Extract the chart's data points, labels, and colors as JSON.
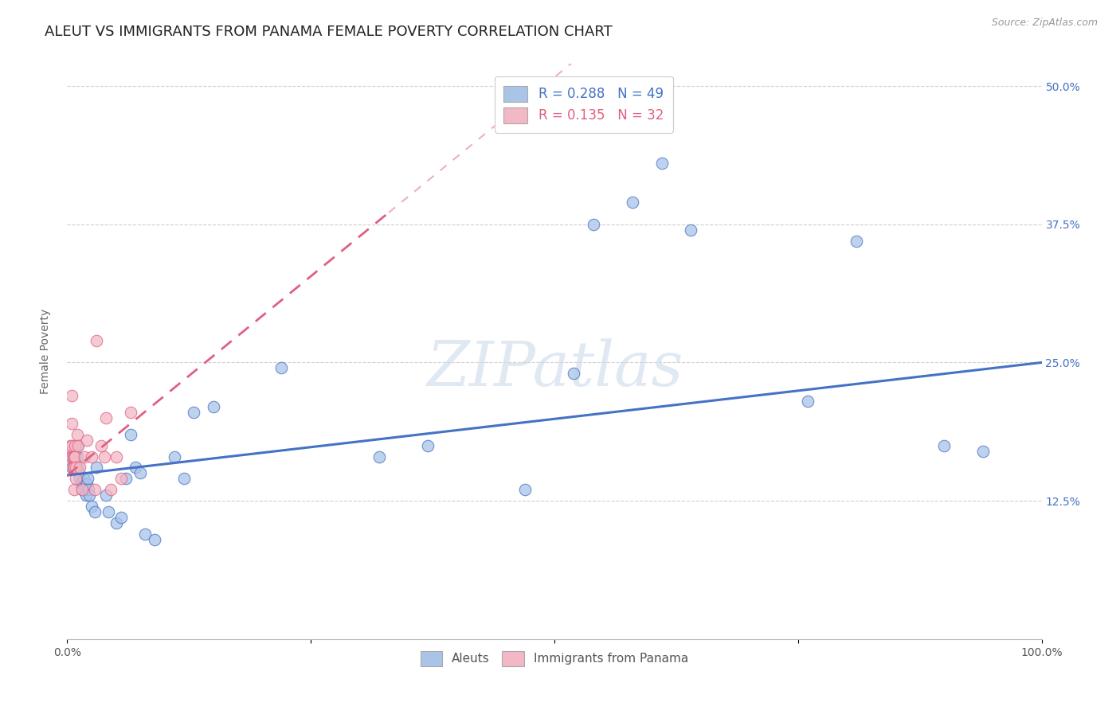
{
  "title": "ALEUT VS IMMIGRANTS FROM PANAMA FEMALE POVERTY CORRELATION CHART",
  "source": "Source: ZipAtlas.com",
  "ylabel": "Female Poverty",
  "xlim": [
    0,
    1.0
  ],
  "ylim": [
    0,
    0.52
  ],
  "ytick_labels": [
    "12.5%",
    "25.0%",
    "37.5%",
    "50.0%"
  ],
  "ytick_vals": [
    0.125,
    0.25,
    0.375,
    0.5
  ],
  "legend_r1": "R = 0.288",
  "legend_n1": "N = 49",
  "legend_r2": "R = 0.135",
  "legend_n2": "N = 32",
  "color_blue": "#aac4e8",
  "color_pink": "#f2b8c6",
  "line_blue": "#4472c4",
  "line_pink": "#e06080",
  "background_color": "#ffffff",
  "grid_color": "#d0d0d0",
  "aleuts_x": [
    0.005,
    0.007,
    0.008,
    0.009,
    0.01,
    0.01,
    0.01,
    0.012,
    0.013,
    0.014,
    0.015,
    0.016,
    0.017,
    0.018,
    0.019,
    0.02,
    0.021,
    0.022,
    0.023,
    0.025,
    0.028,
    0.03,
    0.04,
    0.042,
    0.05,
    0.055,
    0.06,
    0.065,
    0.07,
    0.075,
    0.08,
    0.09,
    0.11,
    0.12,
    0.13,
    0.15,
    0.22,
    0.32,
    0.37,
    0.47,
    0.52,
    0.54,
    0.58,
    0.61,
    0.64,
    0.76,
    0.81,
    0.9,
    0.94
  ],
  "aleuts_y": [
    0.155,
    0.165,
    0.16,
    0.155,
    0.175,
    0.165,
    0.155,
    0.15,
    0.145,
    0.14,
    0.135,
    0.14,
    0.145,
    0.135,
    0.13,
    0.14,
    0.145,
    0.135,
    0.13,
    0.12,
    0.115,
    0.155,
    0.13,
    0.115,
    0.105,
    0.11,
    0.145,
    0.185,
    0.155,
    0.15,
    0.095,
    0.09,
    0.165,
    0.145,
    0.205,
    0.21,
    0.245,
    0.165,
    0.175,
    0.135,
    0.24,
    0.375,
    0.395,
    0.43,
    0.37,
    0.215,
    0.36,
    0.175,
    0.17
  ],
  "panama_x": [
    0.003,
    0.004,
    0.004,
    0.005,
    0.005,
    0.005,
    0.005,
    0.006,
    0.006,
    0.007,
    0.007,
    0.007,
    0.008,
    0.008,
    0.009,
    0.009,
    0.01,
    0.011,
    0.013,
    0.015,
    0.018,
    0.02,
    0.025,
    0.028,
    0.03,
    0.035,
    0.038,
    0.04,
    0.045,
    0.05,
    0.055,
    0.065
  ],
  "panama_y": [
    0.175,
    0.17,
    0.165,
    0.22,
    0.195,
    0.175,
    0.165,
    0.165,
    0.155,
    0.165,
    0.155,
    0.135,
    0.175,
    0.165,
    0.155,
    0.145,
    0.185,
    0.175,
    0.155,
    0.135,
    0.165,
    0.18,
    0.165,
    0.135,
    0.27,
    0.175,
    0.165,
    0.2,
    0.135,
    0.165,
    0.145,
    0.205
  ],
  "title_fontsize": 13,
  "axis_fontsize": 10,
  "tick_fontsize": 10,
  "watermark": "ZIPatlas"
}
